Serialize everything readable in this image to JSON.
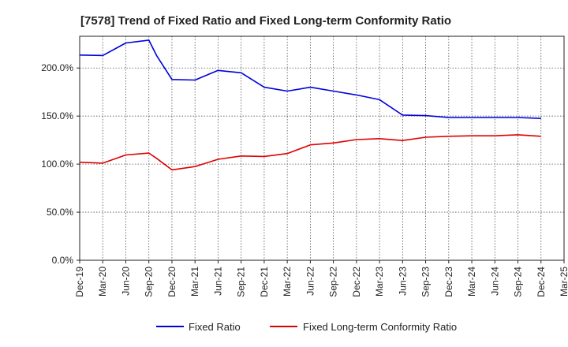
{
  "chart_data": {
    "type": "line",
    "title": "[7578]  Trend of Fixed Ratio and Fixed Long-term Conformity Ratio",
    "xlabel": "",
    "ylabel": "",
    "ylim": [
      0,
      233
    ],
    "y_ticks": [
      0,
      50,
      100,
      150,
      200
    ],
    "y_tick_labels": [
      "0.0%",
      "50.0%",
      "100.0%",
      "150.0%",
      "200.0%"
    ],
    "x_tick_labels": [
      "Dec-19",
      "Mar-20",
      "Jun-20",
      "Sep-20",
      "Dec-20",
      "Mar-21",
      "Jun-21",
      "Sep-21",
      "Dec-21",
      "Mar-22",
      "Jun-22",
      "Sep-22",
      "Dec-22",
      "Mar-23",
      "Jun-23",
      "Sep-23",
      "Dec-23",
      "Mar-24",
      "Jun-24",
      "Sep-24",
      "Dec-24",
      "Mar-25"
    ],
    "grid": true,
    "legend_position": "bottom",
    "series": [
      {
        "name": "Fixed Ratio",
        "color": "#0000dd",
        "x": [
          "Dec-19",
          "Mar-20",
          "Jun-20",
          "Sep-20",
          "Oct-20",
          "Dec-20",
          "Mar-21",
          "Jun-21",
          "Sep-21",
          "Dec-21",
          "Mar-22",
          "Jun-22",
          "Sep-22",
          "Dec-22",
          "Mar-23",
          "Jun-23",
          "Sep-23",
          "Dec-23",
          "Mar-24",
          "Jun-24",
          "Sep-24",
          "Dec-24"
        ],
        "values": [
          213.5,
          213,
          226,
          229,
          213,
          188,
          187.5,
          197.5,
          195,
          180,
          176,
          180,
          176,
          172,
          167,
          151,
          150.5,
          148.5,
          148.5,
          148.5,
          148.5,
          147.5
        ]
      },
      {
        "name": "Fixed Long-term Conformity Ratio",
        "color": "#dd0000",
        "x": [
          "Dec-19",
          "Mar-20",
          "Jun-20",
          "Sep-20",
          "Oct-20",
          "Dec-20",
          "Mar-21",
          "Jun-21",
          "Sep-21",
          "Dec-21",
          "Mar-22",
          "Jun-22",
          "Sep-22",
          "Dec-22",
          "Mar-23",
          "Jun-23",
          "Sep-23",
          "Dec-23",
          "Mar-24",
          "Jun-24",
          "Sep-24",
          "Dec-24"
        ],
        "values": [
          102,
          101,
          109.5,
          111.5,
          106,
          94,
          97.5,
          105,
          108.5,
          108,
          111,
          120,
          122,
          125.5,
          126.5,
          124.5,
          128,
          129,
          129.5,
          129.5,
          130.5,
          129
        ]
      }
    ]
  }
}
